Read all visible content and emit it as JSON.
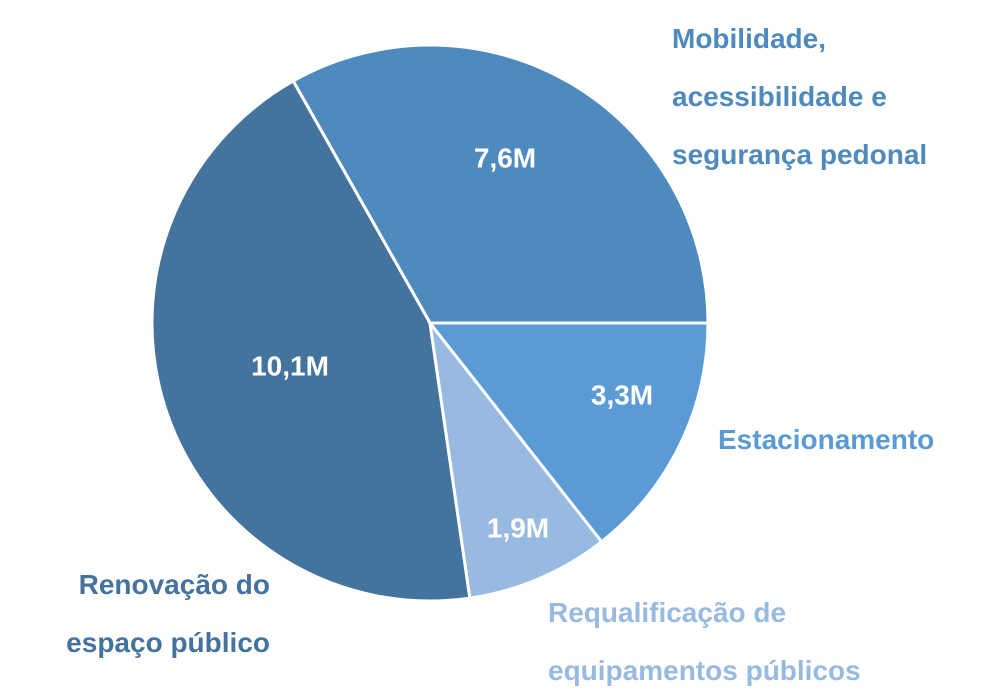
{
  "chart_data": {
    "type": "pie",
    "categories": [
      "Mobilidade, acessibilidade e segurança pedonal",
      "Renovação do espaço público",
      "Requalificação de equipamentos públicos",
      "Estacionamento"
    ],
    "values": [
      7.6,
      10.1,
      1.9,
      3.3
    ],
    "value_labels": [
      "7,6M",
      "10,1M",
      "1,9M",
      "3,3M"
    ],
    "colors": [
      "#4f8abe",
      "#44739e",
      "#98b9e0",
      "#5b9bd5"
    ]
  }
}
